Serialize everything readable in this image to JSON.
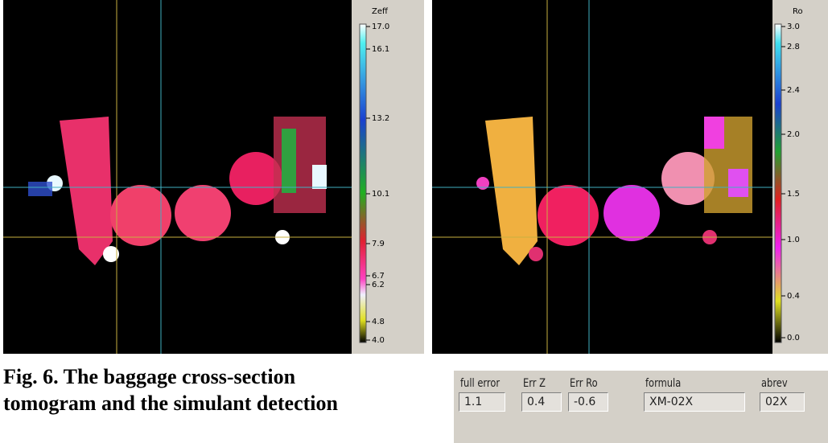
{
  "figure": {
    "left": {
      "scale_title": "Zeff",
      "scale_ticks": [
        "17.0",
        "16.1",
        "13.2",
        "10.1",
        "7.9",
        "6.7",
        "6.2",
        "4.8",
        "4.0"
      ]
    },
    "right": {
      "scale_title": "Ro",
      "scale_ticks": [
        "3.0",
        "2.8",
        "2.4",
        "2.0",
        "1.5",
        "1.0",
        "0.4",
        "0.0"
      ]
    },
    "caption": [
      "Fig. 6. The baggage cross-section",
      "tomogram and the simulant detection"
    ]
  },
  "panel": {
    "fields": [
      {
        "label": "full error",
        "value": "1.1"
      },
      {
        "label": "Err Z",
        "value": "0.4"
      },
      {
        "label": "Err Ro",
        "value": "-0.6"
      },
      {
        "label": "formula",
        "value": "XM-02X"
      },
      {
        "label": "abrev",
        "value": "02X"
      }
    ]
  }
}
